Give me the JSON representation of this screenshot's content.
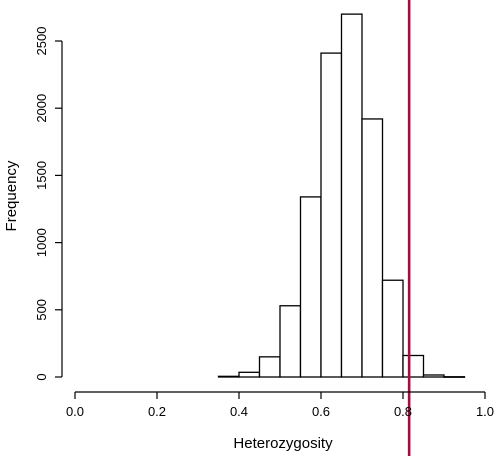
{
  "chart_data": {
    "type": "bar",
    "title": "",
    "xlabel": "Heterozygosity",
    "ylabel": "Frequency",
    "xlim": [
      0.0,
      1.0
    ],
    "ylim": [
      0,
      2700
    ],
    "bin_width": 0.05,
    "bins": [
      {
        "start": 0.35,
        "end": 0.4,
        "count": 5
      },
      {
        "start": 0.4,
        "end": 0.45,
        "count": 35
      },
      {
        "start": 0.45,
        "end": 0.5,
        "count": 150
      },
      {
        "start": 0.5,
        "end": 0.55,
        "count": 530
      },
      {
        "start": 0.55,
        "end": 0.6,
        "count": 1340
      },
      {
        "start": 0.6,
        "end": 0.65,
        "count": 2410
      },
      {
        "start": 0.65,
        "end": 0.7,
        "count": 2700
      },
      {
        "start": 0.7,
        "end": 0.75,
        "count": 1920
      },
      {
        "start": 0.75,
        "end": 0.8,
        "count": 720
      },
      {
        "start": 0.8,
        "end": 0.85,
        "count": 160
      },
      {
        "start": 0.85,
        "end": 0.9,
        "count": 15
      },
      {
        "start": 0.9,
        "end": 0.95,
        "count": 2
      }
    ],
    "x_ticks": [
      {
        "value": 0.0,
        "label": "0.0"
      },
      {
        "value": 0.2,
        "label": "0.2"
      },
      {
        "value": 0.4,
        "label": "0.4"
      },
      {
        "value": 0.6,
        "label": "0.6"
      },
      {
        "value": 0.8,
        "label": "0.8"
      },
      {
        "value": 1.0,
        "label": "1.0"
      }
    ],
    "y_ticks": [
      {
        "value": 0,
        "label": "0"
      },
      {
        "value": 500,
        "label": "500"
      },
      {
        "value": 1000,
        "label": "1000"
      },
      {
        "value": 1500,
        "label": "1500"
      },
      {
        "value": 2000,
        "label": "2000"
      },
      {
        "value": 2500,
        "label": "2500"
      }
    ],
    "reference_line": {
      "x": 0.815,
      "color": "#a0103c"
    },
    "grid": false
  }
}
